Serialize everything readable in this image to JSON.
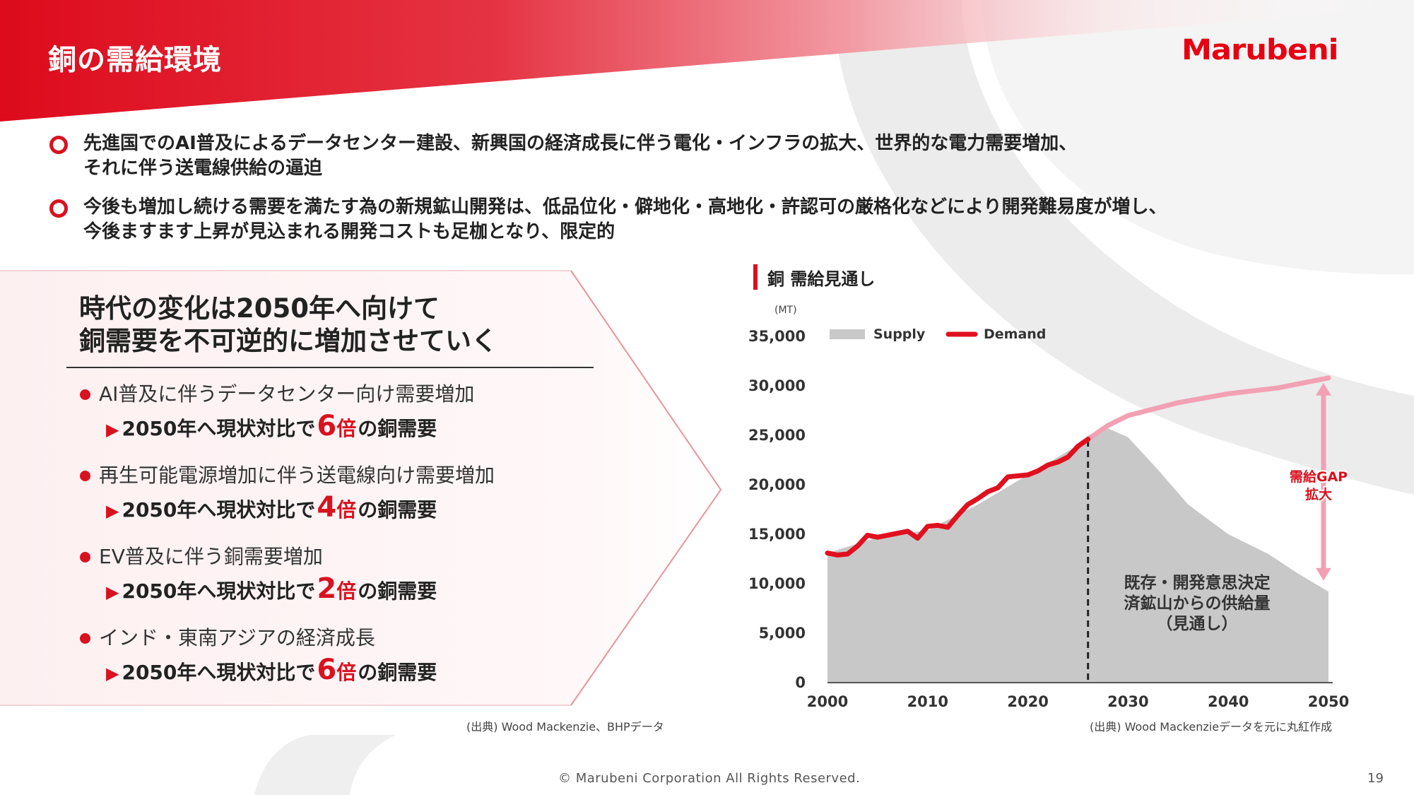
{
  "header": {
    "title": "銅の需給環境",
    "logo_text": "Marubeni"
  },
  "bullets": [
    {
      "lines": [
        "先進国でのAI普及によるデータセンター建設、新興国の経済成長に伴う電化・インフラの拡大、世界的な電力需要増加、",
        "それに伴う送電線供給の逼迫"
      ]
    },
    {
      "lines": [
        "今後も増加し続ける需要を満たす為の新規鉱山開発は、低品位化・僻地化・高地化・許認可の厳格化などにより開発難易度が増し、",
        "今後ますます上昇が見込まれる開発コストも足枷となり、限定的"
      ]
    }
  ],
  "left_panel": {
    "title_line1": "時代の変化は2050年へ向けて",
    "title_line2": "銅需要を不可逆的に増加させていく",
    "items": [
      {
        "head": "AI普及に伴うデータセンター向け需要増加",
        "sub_prefix": "2050年へ現状対比で",
        "multiplier": "6",
        "bai": "倍",
        "sub_suffix": "の銅需要"
      },
      {
        "head": "再生可能電源増加に伴う送電線向け需要増加",
        "sub_prefix": "2050年へ現状対比で",
        "multiplier": "4",
        "bai": "倍",
        "sub_suffix": "の銅需要"
      },
      {
        "head": "EV普及に伴う銅需要増加",
        "sub_prefix": "2050年へ現状対比で",
        "multiplier": "2",
        "bai": "倍",
        "sub_suffix": "の銅需要"
      },
      {
        "head": "インド・東南アジアの経済成長",
        "sub_prefix": "2050年へ現状対比で",
        "multiplier": "6",
        "bai": "倍",
        "sub_suffix": "の銅需要"
      }
    ],
    "source": "(出典) Wood Mackenzie、BHPデータ"
  },
  "chart_heading": "銅 需給見通し",
  "chart_data": {
    "type": "area",
    "unit": "(MT)",
    "ylim": [
      0,
      35000
    ],
    "yticks": [
      "35,000",
      "30,000",
      "25,000",
      "20,000",
      "15,000",
      "10,000",
      "5,000",
      "0"
    ],
    "ytick_values": [
      35000,
      30000,
      25000,
      20000,
      15000,
      10000,
      5000,
      0
    ],
    "xlim": [
      2000,
      2050
    ],
    "xticks": [
      "2000",
      "2010",
      "2020",
      "2030",
      "2040",
      "2050"
    ],
    "xtick_values": [
      2000,
      2010,
      2020,
      2030,
      2040,
      2050
    ],
    "legend": [
      "Supply",
      "Demand"
    ],
    "legend_position": "top",
    "series": [
      {
        "name": "Supply",
        "x": [
          2000,
          2005,
          2010,
          2015,
          2020,
          2025,
          2026,
          2028,
          2030,
          2033,
          2036,
          2040,
          2044,
          2047,
          2050
        ],
        "values": [
          13100,
          14700,
          15400,
          18000,
          21000,
          24000,
          25000,
          25700,
          24800,
          21500,
          18000,
          15000,
          13000,
          11000,
          9200
        ]
      },
      {
        "name": "Demand",
        "x": [
          2000,
          2001,
          2002,
          2003,
          2004,
          2005,
          2006,
          2007,
          2008,
          2009,
          2010,
          2011,
          2012,
          2013,
          2014,
          2015,
          2016,
          2017,
          2018,
          2019,
          2020,
          2021,
          2022,
          2023,
          2024,
          2025,
          2026,
          2028,
          2030,
          2035,
          2040,
          2045,
          2050
        ],
        "values": [
          13100,
          12900,
          13000,
          13800,
          14900,
          14700,
          14900,
          15100,
          15300,
          14600,
          15800,
          15900,
          15700,
          16900,
          18000,
          18600,
          19300,
          19700,
          20800,
          20900,
          21000,
          21400,
          22000,
          22300,
          22800,
          23900,
          24600,
          26000,
          27000,
          28300,
          29200,
          29800,
          30800
        ]
      }
    ],
    "divider_year": 2026,
    "annotations": [
      {
        "lines": [
          "既存・開発意思決定",
          "済鉱山からの供給量",
          "（見通し）"
        ]
      },
      {
        "lines": [
          "需給GAP",
          "拡大"
        ]
      }
    ]
  },
  "chart_source": "(出典) Wood Mackenzieデータを元に丸紅作成",
  "footer": {
    "copyright": "© Marubeni Corporation All Rights Reserved.",
    "page": "19"
  },
  "colors": {
    "accent": "#d8121f",
    "supply_fill": "#c8c8c8",
    "demand_line": "#e0101e",
    "demand_forecast": "#f2a1b5"
  }
}
